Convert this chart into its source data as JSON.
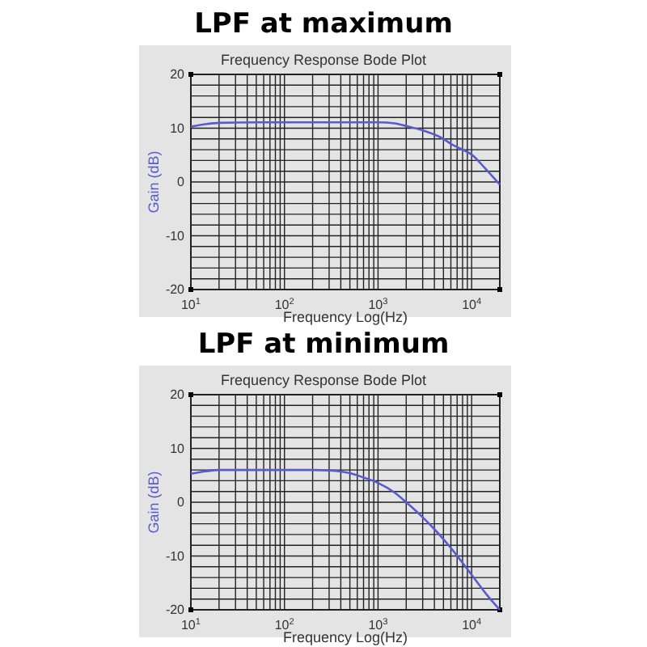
{
  "chart_data": [
    {
      "type": "line",
      "title": "LPF at maximum",
      "subtitle": "Frequency Response Bode Plot",
      "xlabel": "Frequency Log(Hz)",
      "ylabel": "Gain (dB)",
      "log": "x",
      "grid": true,
      "xlim": [
        10,
        20000
      ],
      "ylim": [
        -20,
        20
      ],
      "xticks": [
        {
          "value": 10,
          "label": "10$^{1}$"
        },
        {
          "value": 20,
          "label": null
        },
        {
          "value": 30,
          "label": null
        },
        {
          "value": 40,
          "label": null
        },
        {
          "value": 50,
          "label": null
        },
        {
          "value": 60,
          "label": null
        },
        {
          "value": 70,
          "label": null
        },
        {
          "value": 80,
          "label": null
        },
        {
          "value": 90,
          "label": null
        },
        {
          "value": 100,
          "label": "10$^{2}$"
        },
        {
          "value": 200,
          "label": null
        },
        {
          "value": 300,
          "label": null
        },
        {
          "value": 400,
          "label": null
        },
        {
          "value": 500,
          "label": null
        },
        {
          "value": 600,
          "label": null
        },
        {
          "value": 700,
          "label": null
        },
        {
          "value": 800,
          "label": null
        },
        {
          "value": 900,
          "label": null
        },
        {
          "value": 1000,
          "label": "10$^{3}$"
        },
        {
          "value": 2000,
          "label": null
        },
        {
          "value": 3000,
          "label": null
        },
        {
          "value": 4000,
          "label": null
        },
        {
          "value": 5000,
          "label": null
        },
        {
          "value": 6000,
          "label": null
        },
        {
          "value": 7000,
          "label": null
        },
        {
          "value": 8000,
          "label": null
        },
        {
          "value": 9000,
          "label": null
        },
        {
          "value": 10000,
          "label": "10$^{4}$"
        },
        {
          "value": 20000,
          "label": null
        }
      ],
      "yticks": [
        -20,
        {
          "value": -18,
          "label": null
        },
        {
          "value": -16,
          "label": null
        },
        {
          "value": -14,
          "label": null
        },
        {
          "value": -12,
          "label": null
        },
        -10,
        {
          "value": -8,
          "label": null
        },
        {
          "value": -6,
          "label": null
        },
        {
          "value": -4,
          "label": null
        },
        {
          "value": -2,
          "label": null
        },
        0,
        {
          "value": 2,
          "label": null
        },
        {
          "value": 4,
          "label": null
        },
        {
          "value": 6,
          "label": null
        },
        {
          "value": 8,
          "label": null
        },
        10,
        {
          "value": 12,
          "label": null
        },
        {
          "value": 14,
          "label": null
        },
        {
          "value": 16,
          "label": null
        },
        {
          "value": 18,
          "label": null
        },
        20
      ],
      "series": [
        {
          "color": "#5a5ad0",
          "x": [
            10,
            15,
            20,
            50,
            100,
            300,
            1000,
            1500,
            2000,
            3000,
            3900,
            5000,
            6000,
            8000,
            10000,
            14000,
            20000
          ],
          "values": [
            10.3,
            10.8,
            11,
            11.1,
            11.1,
            11.1,
            11.1,
            10.9,
            10.4,
            9.6,
            8.9,
            8,
            7.1,
            6,
            5.1,
            2.5,
            -0.5
          ]
        }
      ]
    },
    {
      "type": "line",
      "title": "LPF at minimum",
      "subtitle": "Frequency Response Bode Plot",
      "xlabel": "Frequency Log(Hz)",
      "ylabel": "Gain (dB)",
      "log": "x",
      "grid": true,
      "xlim": [
        10,
        20000
      ],
      "ylim": [
        -20,
        20
      ],
      "xticks": [
        {
          "value": 10,
          "label": "10$^{1}$"
        },
        {
          "value": 20,
          "label": null
        },
        {
          "value": 30,
          "label": null
        },
        {
          "value": 40,
          "label": null
        },
        {
          "value": 50,
          "label": null
        },
        {
          "value": 60,
          "label": null
        },
        {
          "value": 70,
          "label": null
        },
        {
          "value": 80,
          "label": null
        },
        {
          "value": 90,
          "label": null
        },
        {
          "value": 100,
          "label": "10$^{2}$"
        },
        {
          "value": 200,
          "label": null
        },
        {
          "value": 300,
          "label": null
        },
        {
          "value": 400,
          "label": null
        },
        {
          "value": 500,
          "label": null
        },
        {
          "value": 600,
          "label": null
        },
        {
          "value": 700,
          "label": null
        },
        {
          "value": 800,
          "label": null
        },
        {
          "value": 900,
          "label": null
        },
        {
          "value": 1000,
          "label": "10$^{3}$"
        },
        {
          "value": 2000,
          "label": null
        },
        {
          "value": 3000,
          "label": null
        },
        {
          "value": 4000,
          "label": null
        },
        {
          "value": 5000,
          "label": null
        },
        {
          "value": 6000,
          "label": null
        },
        {
          "value": 7000,
          "label": null
        },
        {
          "value": 8000,
          "label": null
        },
        {
          "value": 9000,
          "label": null
        },
        {
          "value": 10000,
          "label": "10$^{4}$"
        },
        {
          "value": 20000,
          "label": null
        }
      ],
      "yticks": [
        -20,
        {
          "value": -18,
          "label": null
        },
        {
          "value": -16,
          "label": null
        },
        {
          "value": -14,
          "label": null
        },
        {
          "value": -12,
          "label": null
        },
        -10,
        {
          "value": -8,
          "label": null
        },
        {
          "value": -6,
          "label": null
        },
        {
          "value": -4,
          "label": null
        },
        {
          "value": -2,
          "label": null
        },
        0,
        {
          "value": 2,
          "label": null
        },
        {
          "value": 4,
          "label": null
        },
        {
          "value": 6,
          "label": null
        },
        {
          "value": 8,
          "label": null
        },
        10,
        {
          "value": 12,
          "label": null
        },
        {
          "value": 14,
          "label": null
        },
        {
          "value": 16,
          "label": null
        },
        {
          "value": 18,
          "label": null
        },
        20
      ],
      "series": [
        {
          "color": "#5a5ad0",
          "x": [
            10,
            15,
            20,
            50,
            100,
            200,
            300,
            500,
            700,
            1000,
            1500,
            2000,
            3000,
            4000,
            6000,
            10000,
            15000,
            20000
          ],
          "values": [
            5.3,
            5.8,
            6,
            6,
            6,
            6,
            5.9,
            5.4,
            4.6,
            3.6,
            1.8,
            0,
            -2.8,
            -5,
            -8.5,
            -13.5,
            -17.5,
            -20
          ]
        }
      ]
    }
  ]
}
